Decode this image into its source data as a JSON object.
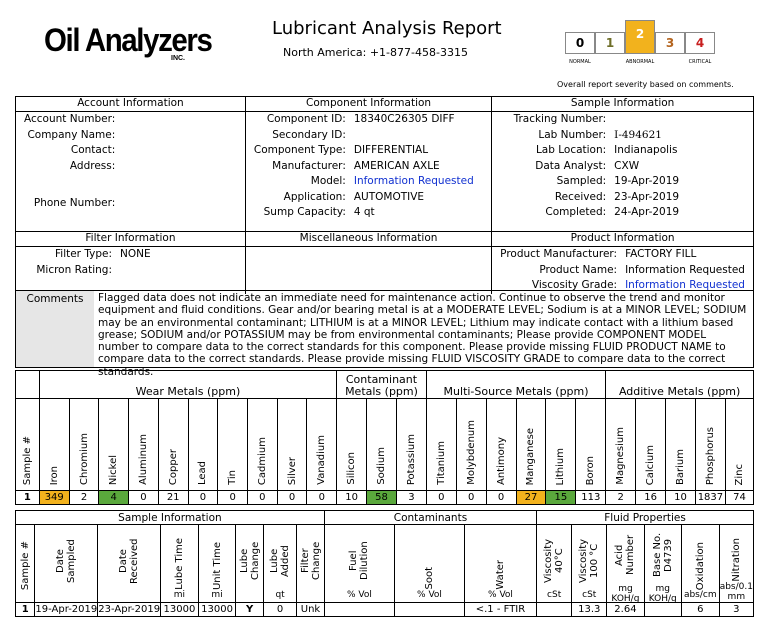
{
  "header": {
    "logo": "Oil Analyzers",
    "logo_inc": "INC.",
    "title": "Lubricant Analysis Report",
    "phone": "North America: +1-877-458-3315",
    "severity_note": "Overall report severity based on comments.",
    "severity": [
      {
        "value": "0",
        "label": "NORMAL",
        "color": "#000000"
      },
      {
        "value": "1",
        "label": "",
        "color": "#6e6e28"
      },
      {
        "value": "2",
        "label": "ABNORMAL",
        "color": "#ffffff"
      },
      {
        "value": "3",
        "label": "",
        "color": "#b4641e"
      },
      {
        "value": "4",
        "label": "CRITICAL",
        "color": "#c81e1e"
      }
    ]
  },
  "account": {
    "heading": "Account Information",
    "account_number_label": "Account Number:",
    "company_name_label": "Company Name:",
    "contact_label": "Contact:",
    "address_label": "Address:",
    "phone_number_label": "Phone Number:"
  },
  "component": {
    "heading": "Component Information",
    "id_label": "Component ID:",
    "id": "18340C26305 DIFF",
    "secondary_label": "Secondary ID:",
    "type_label": "Component Type:",
    "type": "DIFFERENTIAL",
    "manufacturer_label": "Manufacturer:",
    "manufacturer": "AMERICAN AXLE",
    "model_label": "Model:",
    "model": "Information Requested",
    "application_label": "Application:",
    "application": "AUTOMOTIVE",
    "sump_label": "Sump Capacity:",
    "sump": "4 qt"
  },
  "sample": {
    "heading": "Sample Information",
    "tracking_label": "Tracking Number:",
    "lab_number_label": "Lab Number:",
    "lab_number": "I-494621",
    "lab_location_label": "Lab Location:",
    "lab_location": "Indianapolis",
    "analyst_label": "Data Analyst:",
    "analyst": "CXW",
    "sampled_label": "Sampled:",
    "sampled": "19-Apr-2019",
    "received_label": "Received:",
    "received": "23-Apr-2019",
    "completed_label": "Completed:",
    "completed": "24-Apr-2019"
  },
  "filter": {
    "heading": "Filter Information",
    "type_label": "Filter Type:",
    "type": "NONE",
    "micron_label": "Micron Rating:"
  },
  "misc": {
    "heading": "Miscellaneous Information"
  },
  "product": {
    "heading": "Product Information",
    "manufacturer_label": "Product Manufacturer:",
    "manufacturer": "FACTORY FILL",
    "name_label": "Product Name:",
    "name": "Information Requested",
    "viscosity_label": "Viscosity Grade:",
    "viscosity": "Information Requested"
  },
  "comments": {
    "label": "Comments",
    "text": "Flagged data does not indicate an immediate need for maintenance action. Continue to observe the trend and monitor equipment and fluid conditions. Gear and/or bearing metal is at a MODERATE LEVEL; Sodium is at a MINOR LEVEL; SODIUM may be an environmental contaminant; LITHIUM is at a MINOR LEVEL; Lithium may indicate contact with a lithium based grease; SODIUM and/or POTASSIUM may be from environmental contaminants; Please provide COMPONENT MODEL number to compare data to the correct standards for this component. Please provide missing FLUID PRODUCT NAME to compare data to the correct standards. Please provide missing FLUID VISCOSITY GRADE to compare data to the correct standards."
  },
  "metals": {
    "groups": [
      "Wear Metals (ppm)",
      "Contaminant Metals (ppm)",
      "Multi-Source Metals (ppm)",
      "Additive Metals (ppm)"
    ],
    "columns": [
      "Sample #",
      "Iron",
      "Chromium",
      "Nickel",
      "Aluminum",
      "Copper",
      "Lead",
      "Tin",
      "Cadmium",
      "Silver",
      "Vanadium",
      "Silicon",
      "Sodium",
      "Potassium",
      "Titanium",
      "Molybdenum",
      "Antimony",
      "Manganese",
      "Lithium",
      "Boron",
      "Magnesium",
      "Calcium",
      "Barium",
      "Phosphorus",
      "Zinc"
    ],
    "values": [
      "1",
      "349",
      "2",
      "4",
      "0",
      "21",
      "0",
      "0",
      "0",
      "0",
      "0",
      "10",
      "58",
      "3",
      "0",
      "0",
      "0",
      "27",
      "15",
      "113",
      "2",
      "16",
      "10",
      "1837",
      "74"
    ],
    "flags": [
      "",
      "yellow",
      "",
      "green",
      "",
      "",
      "",
      "",
      "",
      "",
      "",
      "",
      "green",
      "",
      "",
      "",
      "",
      "yellow",
      "green",
      "",
      "",
      "",
      "",
      "",
      ""
    ]
  },
  "fluid": {
    "groups": [
      "Sample Information",
      "Contaminants",
      "Fluid Properties"
    ],
    "columns": [
      "Sample #",
      "Date Sampled",
      "Date Received",
      "Lube Time",
      "Unit Time",
      "Lube Change",
      "Lube Added",
      "Filter Change",
      "Fuel Dilution",
      "Soot",
      "Water",
      "Viscosity 40°C",
      "Viscosity 100 °C",
      "Acid Number",
      "Base No. D4739",
      "Oxidation",
      "Nitration"
    ],
    "units": [
      "",
      "",
      "",
      "mi",
      "mi",
      "",
      "qt",
      "",
      "% Vol",
      "% Vol",
      "% Vol",
      "cSt",
      "cSt",
      "mg KOH/g",
      "mg KOH/g",
      "abs/cm",
      "abs/0.1 mm"
    ],
    "values": [
      "1",
      "19-Apr-2019",
      "23-Apr-2019",
      "13000",
      "13000",
      "Y",
      "0",
      "Unk",
      "",
      "",
      "<.1 - FTIR",
      "",
      "13.3",
      "2.64",
      "",
      "6",
      "3"
    ]
  }
}
